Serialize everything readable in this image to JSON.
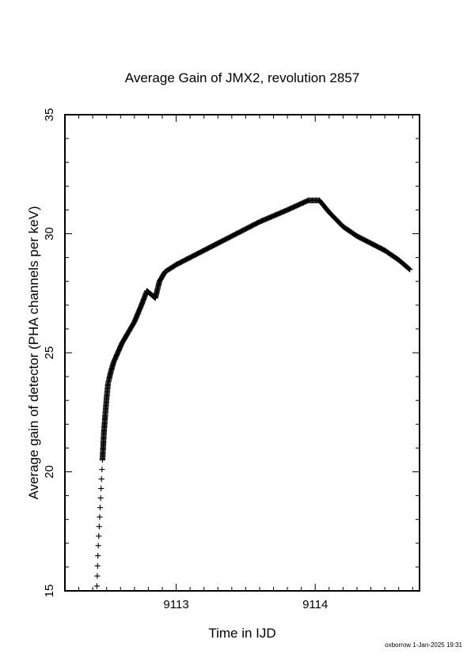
{
  "chart_data": {
    "type": "scatter",
    "title": "Average Gain of JMX2, revolution 2857",
    "xlabel": "Time in IJD",
    "ylabel": "Average gain of detector (PHA channels per keV)",
    "xlim": [
      9112.2,
      9114.75
    ],
    "ylim": [
      15,
      35
    ],
    "xticks": [
      9113,
      9114
    ],
    "yticks": [
      15,
      20,
      25,
      30,
      35
    ],
    "marker": "+",
    "grid": false,
    "legend": "none",
    "footer": "oxborrow  1-Jan-2025 19:31",
    "series": [
      {
        "points": [
          [
            9112.43,
            15.2
          ],
          [
            9112.44,
            16.9
          ],
          [
            9112.45,
            18.1
          ],
          [
            9112.46,
            19.3
          ],
          [
            9112.47,
            20.5
          ],
          [
            9112.48,
            21.6
          ],
          [
            9112.49,
            22.4
          ],
          [
            9112.5,
            23.1
          ],
          [
            9112.51,
            23.7
          ],
          [
            9112.53,
            24.2
          ],
          [
            9112.55,
            24.6
          ],
          [
            9112.58,
            25.0
          ],
          [
            9112.61,
            25.4
          ],
          [
            9112.65,
            25.8
          ],
          [
            9112.7,
            26.3
          ],
          [
            9112.75,
            27.0
          ],
          [
            9112.79,
            27.6
          ],
          [
            9112.83,
            27.4
          ],
          [
            9112.85,
            27.3
          ],
          [
            9112.88,
            28.0
          ],
          [
            9112.92,
            28.4
          ],
          [
            9113.0,
            28.7
          ],
          [
            9113.2,
            29.3
          ],
          [
            9113.4,
            29.9
          ],
          [
            9113.6,
            30.5
          ],
          [
            9113.8,
            31.0
          ],
          [
            9113.95,
            31.4
          ],
          [
            9114.03,
            31.4
          ],
          [
            9114.1,
            30.9
          ],
          [
            9114.2,
            30.3
          ],
          [
            9114.3,
            29.9
          ],
          [
            9114.4,
            29.6
          ],
          [
            9114.5,
            29.3
          ],
          [
            9114.6,
            28.9
          ],
          [
            9114.68,
            28.5
          ]
        ]
      }
    ]
  }
}
